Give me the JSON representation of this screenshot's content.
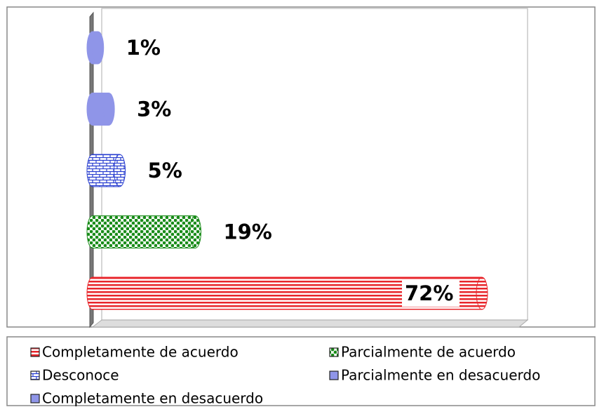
{
  "chart_data": {
    "type": "bar",
    "orientation": "horizontal",
    "series": [
      {
        "name": "Completamente de acuerdo",
        "color": "#e8262b",
        "pattern": "stripes",
        "values": [
          72
        ],
        "value_labels": [
          "72%"
        ]
      },
      {
        "name": "Parcialmente de acuerdo",
        "color": "#1a8c1a",
        "pattern": "checker",
        "values": [
          19
        ],
        "value_labels": [
          "19%"
        ]
      },
      {
        "name": "Desconoce",
        "color": "#2a3fd0",
        "pattern": "brick",
        "values": [
          5
        ],
        "value_labels": [
          "5%"
        ]
      },
      {
        "name": "Parcialmente en desacuerdo",
        "color": "#8f95e8",
        "pattern": "solid",
        "values": [
          3
        ],
        "value_labels": [
          "3%"
        ]
      },
      {
        "name": "Completamente en desacuerdo",
        "color": "#8f95e8",
        "pattern": "solid",
        "values": [
          1
        ],
        "value_labels": [
          "1%"
        ]
      }
    ],
    "legend": "bottom"
  }
}
